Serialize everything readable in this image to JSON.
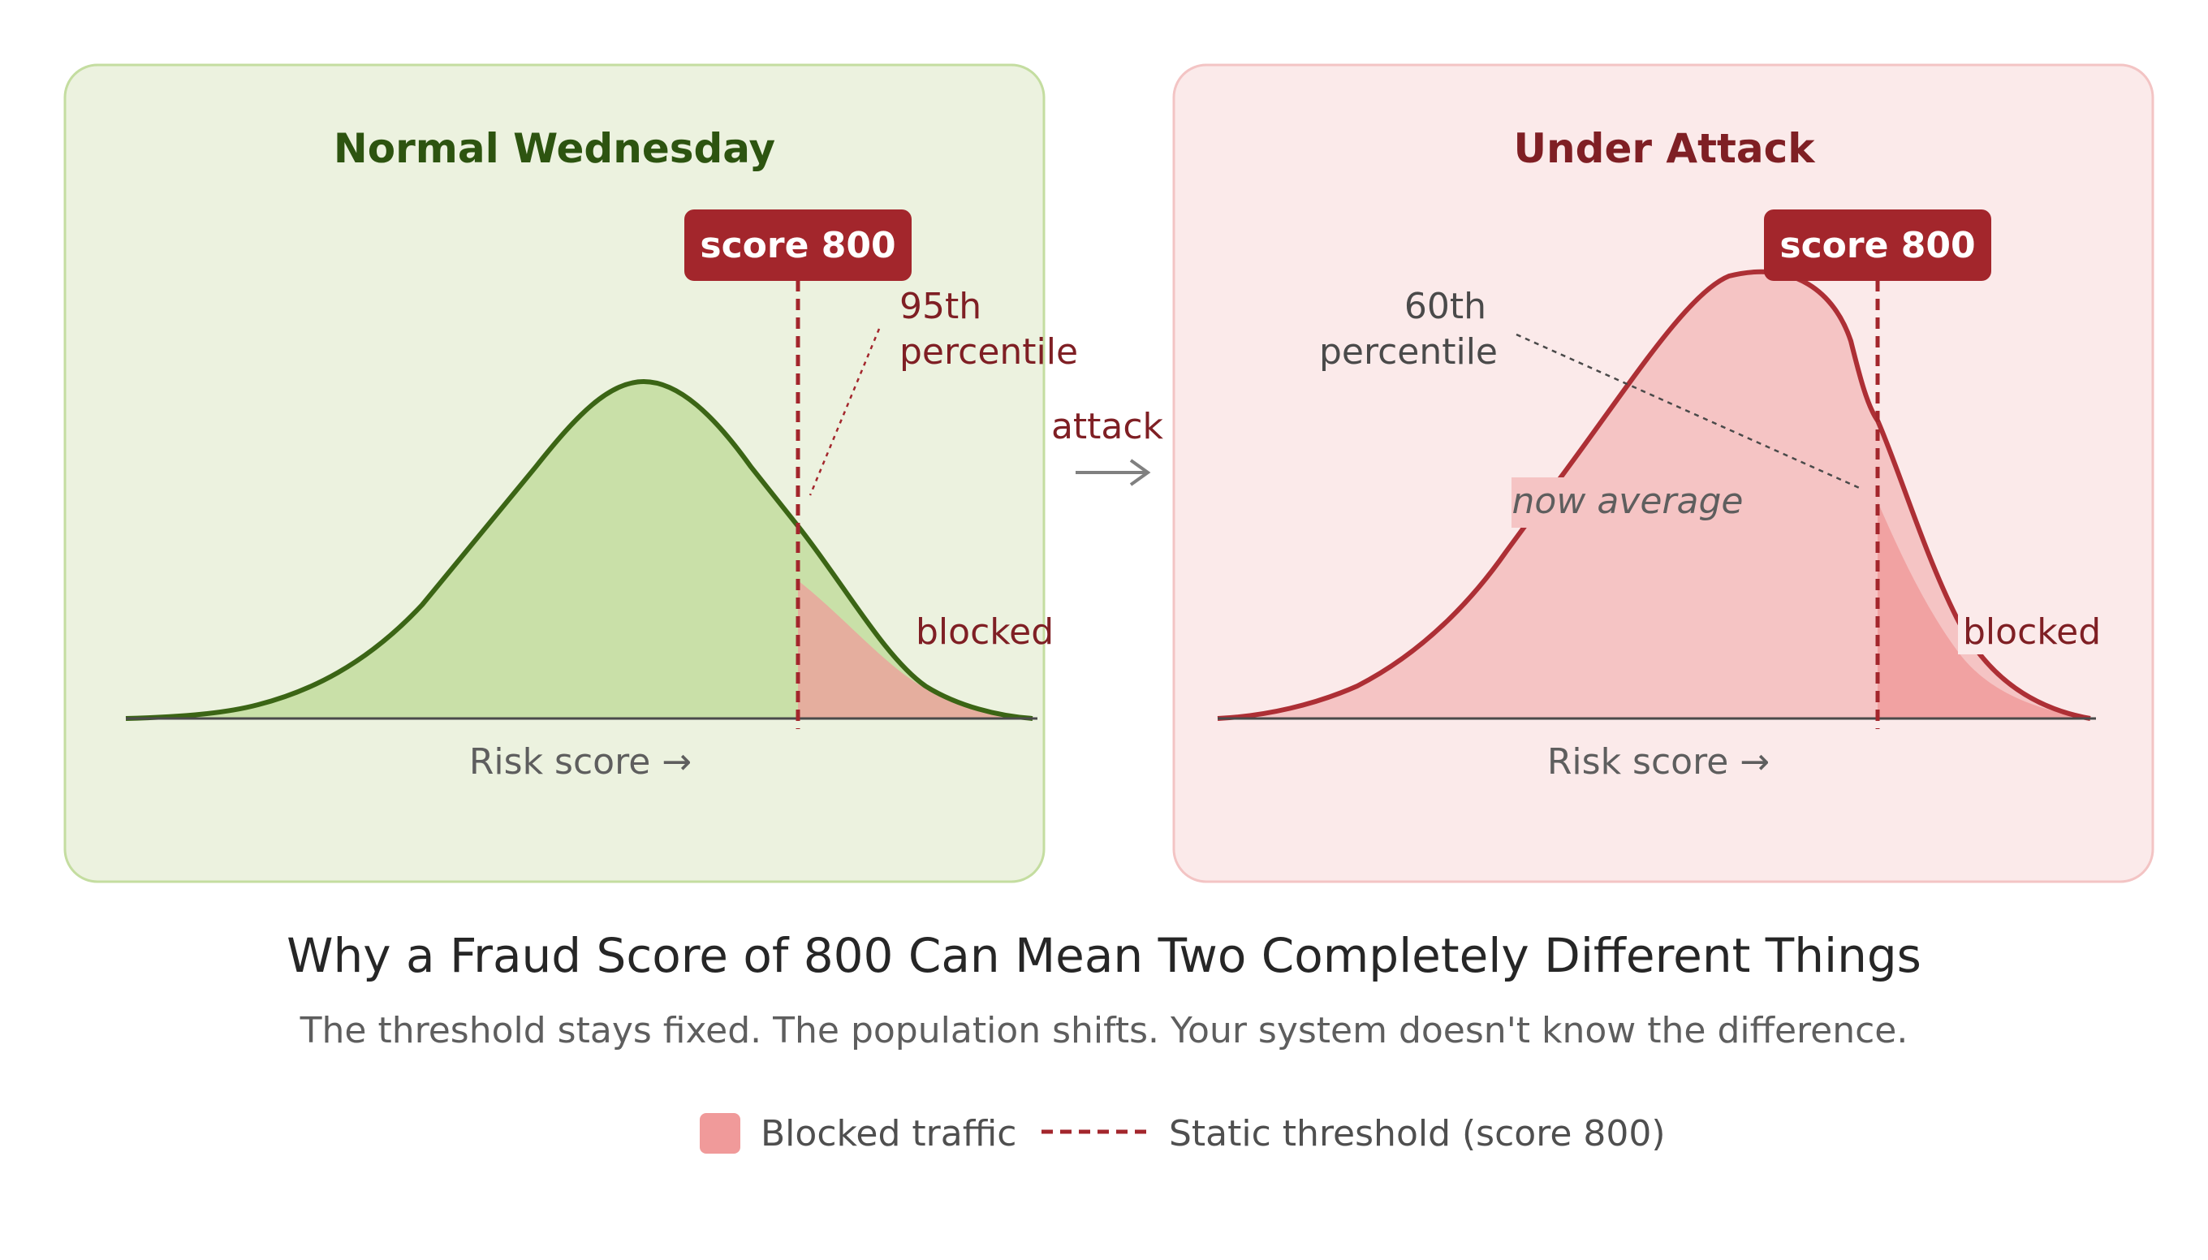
{
  "left_panel": {
    "title": "Normal Wednesday",
    "badge": "score 800",
    "percentile_line1": "95th",
    "percentile_line2": "percentile",
    "blocked_label": "blocked",
    "axis_label": "Risk score →"
  },
  "arrow": {
    "label": "attack"
  },
  "right_panel": {
    "title": "Under Attack",
    "badge": "score 800",
    "percentile_line1": "60th",
    "percentile_line2": "percentile",
    "average_label": "now average",
    "blocked_label": "blocked",
    "axis_label": "Risk score →"
  },
  "caption": {
    "title": "Why a Fraud Score of 800 Can Mean Two Completely Different Things",
    "subtitle": "The threshold stays fixed. The population shifts. Your system doesn't know the difference."
  },
  "legend": {
    "blocked_label": "Blocked traffic",
    "threshold_label": "Static threshold (score 800)"
  },
  "colors": {
    "left_bg": "#ecf2df",
    "left_border": "#c4dda0",
    "left_fill": "#c9e0a8",
    "left_curve": "#3b6515",
    "left_title": "#2d5410",
    "right_bg": "#fbeaea",
    "right_border": "#f3c4c4",
    "right_fill": "#f5c4c4",
    "right_curve": "#ad2f35",
    "right_title": "#7f1f24",
    "blocked_fill": "#f09a9a",
    "threshold": "#a3262c",
    "annotation": "#7f1f24"
  }
}
